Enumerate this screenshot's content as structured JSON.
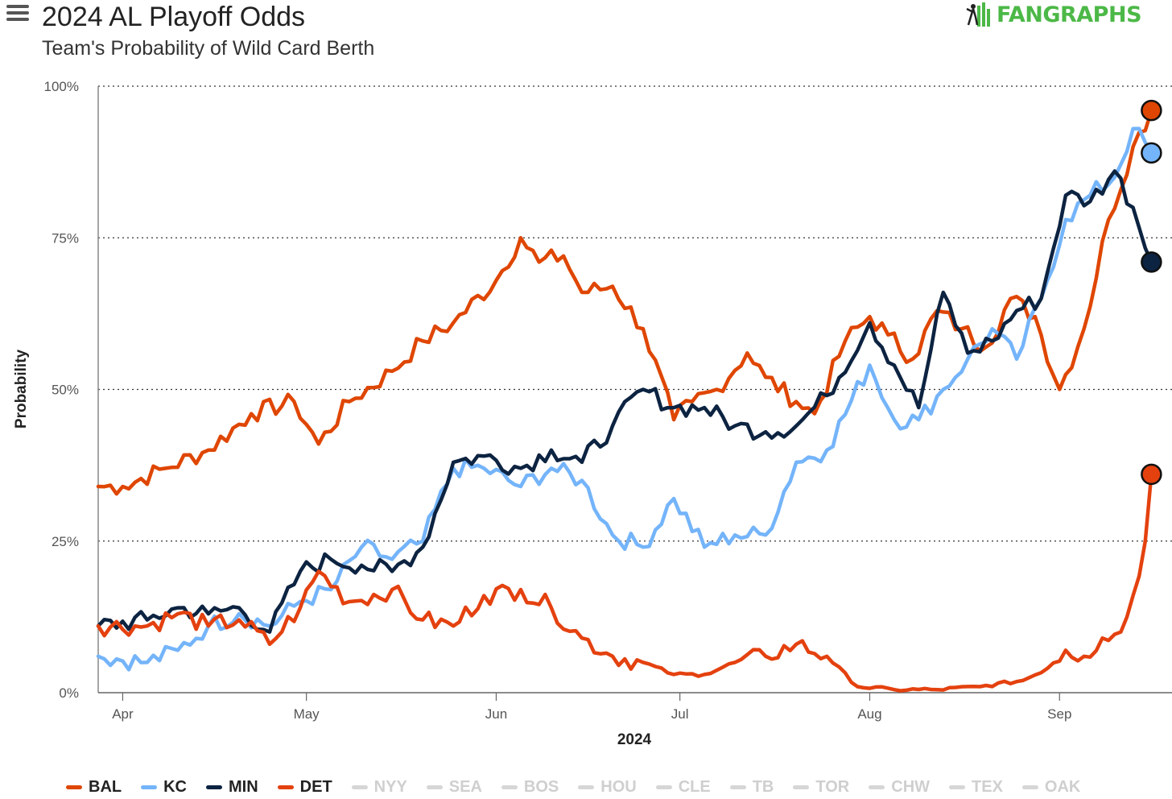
{
  "header": {
    "title": "2024 AL Playoff Odds",
    "subtitle": "Team's Probability of Wild Card Berth",
    "logo": "FANGRAPHS"
  },
  "colors": {
    "BAL": "#df4601",
    "KC": "#74b4fa",
    "MIN": "#0c2341",
    "DET": "#e4410f",
    "inactive": "#d6d6d6"
  },
  "chart_data": {
    "type": "line",
    "title": "2024 AL Playoff Odds",
    "subtitle": "Team's Probability of Wild Card Berth",
    "xlabel": "2024",
    "ylabel": "Probability",
    "ylim": [
      0,
      100
    ],
    "y_ticks": [
      "0%",
      "25%",
      "50%",
      "75%",
      "100%"
    ],
    "x_ticks": [
      "Apr",
      "May",
      "Jun",
      "Jul",
      "Aug",
      "Sep"
    ],
    "xlim": [
      "2024-03-28",
      "2024-09-17"
    ],
    "grid": "horizontal dotted",
    "legend_position": "bottom",
    "series": [
      {
        "name": "BAL",
        "color": "#df4601",
        "points": [
          [
            "2024-03-28",
            34
          ],
          [
            "2024-04-01",
            34
          ],
          [
            "2024-04-08",
            37
          ],
          [
            "2024-04-15",
            40
          ],
          [
            "2024-04-22",
            46
          ],
          [
            "2024-04-29",
            48
          ],
          [
            "2024-05-03",
            41
          ],
          [
            "2024-05-08",
            48
          ],
          [
            "2024-05-15",
            53
          ],
          [
            "2024-05-20",
            58
          ],
          [
            "2024-05-25",
            61
          ],
          [
            "2024-06-01",
            68
          ],
          [
            "2024-06-05",
            75
          ],
          [
            "2024-06-08",
            71
          ],
          [
            "2024-06-12",
            72
          ],
          [
            "2024-06-15",
            66
          ],
          [
            "2024-06-20",
            67
          ],
          [
            "2024-06-25",
            60
          ],
          [
            "2024-06-30",
            45
          ],
          [
            "2024-07-03",
            48
          ],
          [
            "2024-07-07",
            50
          ],
          [
            "2024-07-12",
            56
          ],
          [
            "2024-07-15",
            52
          ],
          [
            "2024-07-20",
            48
          ],
          [
            "2024-07-23",
            46
          ],
          [
            "2024-07-28",
            58
          ],
          [
            "2024-08-01",
            62
          ],
          [
            "2024-08-04",
            59
          ],
          [
            "2024-08-08",
            55
          ],
          [
            "2024-08-12",
            63
          ],
          [
            "2024-08-16",
            60
          ],
          [
            "2024-08-20",
            57
          ],
          [
            "2024-08-24",
            65
          ],
          [
            "2024-08-28",
            62
          ],
          [
            "2024-09-01",
            50
          ],
          [
            "2024-09-05",
            60
          ],
          [
            "2024-09-09",
            78
          ],
          [
            "2024-09-13",
            90
          ],
          [
            "2024-09-16",
            96
          ]
        ]
      },
      {
        "name": "KC",
        "color": "#74b4fa",
        "points": [
          [
            "2024-03-28",
            6
          ],
          [
            "2024-04-05",
            5
          ],
          [
            "2024-04-10",
            7
          ],
          [
            "2024-04-15",
            11
          ],
          [
            "2024-04-20",
            13
          ],
          [
            "2024-04-25",
            11
          ],
          [
            "2024-04-30",
            15
          ],
          [
            "2024-05-05",
            17
          ],
          [
            "2024-05-10",
            24
          ],
          [
            "2024-05-15",
            22
          ],
          [
            "2024-05-20",
            25
          ],
          [
            "2024-05-25",
            37
          ],
          [
            "2024-05-30",
            37
          ],
          [
            "2024-06-05",
            34
          ],
          [
            "2024-06-10",
            37
          ],
          [
            "2024-06-15",
            35
          ],
          [
            "2024-06-20",
            26
          ],
          [
            "2024-06-25",
            24
          ],
          [
            "2024-06-30",
            32
          ],
          [
            "2024-07-05",
            24
          ],
          [
            "2024-07-10",
            26
          ],
          [
            "2024-07-15",
            26
          ],
          [
            "2024-07-20",
            38
          ],
          [
            "2024-07-25",
            40
          ],
          [
            "2024-08-01",
            54
          ],
          [
            "2024-08-05",
            45
          ],
          [
            "2024-08-09",
            45
          ],
          [
            "2024-08-13",
            50
          ],
          [
            "2024-08-17",
            55
          ],
          [
            "2024-08-21",
            60
          ],
          [
            "2024-08-25",
            55
          ],
          [
            "2024-08-29",
            65
          ],
          [
            "2024-09-02",
            78
          ],
          [
            "2024-09-06",
            82
          ],
          [
            "2024-09-10",
            85
          ],
          [
            "2024-09-13",
            93
          ],
          [
            "2024-09-16",
            89
          ]
        ]
      },
      {
        "name": "MIN",
        "color": "#0c2341",
        "points": [
          [
            "2024-03-28",
            11
          ],
          [
            "2024-04-05",
            12
          ],
          [
            "2024-04-10",
            14
          ],
          [
            "2024-04-15",
            13
          ],
          [
            "2024-04-20",
            14
          ],
          [
            "2024-04-25",
            10
          ],
          [
            "2024-04-30",
            20
          ],
          [
            "2024-05-05",
            22
          ],
          [
            "2024-05-10",
            21
          ],
          [
            "2024-05-15",
            20
          ],
          [
            "2024-05-20",
            24
          ],
          [
            "2024-05-25",
            38
          ],
          [
            "2024-05-30",
            39
          ],
          [
            "2024-06-05",
            37
          ],
          [
            "2024-06-10",
            40
          ],
          [
            "2024-06-15",
            38
          ],
          [
            "2024-06-20",
            44
          ],
          [
            "2024-06-25",
            50
          ],
          [
            "2024-06-30",
            47
          ],
          [
            "2024-07-05",
            47
          ],
          [
            "2024-07-10",
            44
          ],
          [
            "2024-07-15",
            43
          ],
          [
            "2024-07-20",
            44
          ],
          [
            "2024-07-25",
            49
          ],
          [
            "2024-08-01",
            61
          ],
          [
            "2024-08-05",
            54
          ],
          [
            "2024-08-09",
            47
          ],
          [
            "2024-08-13",
            66
          ],
          [
            "2024-08-17",
            56
          ],
          [
            "2024-08-21",
            58
          ],
          [
            "2024-08-25",
            63
          ],
          [
            "2024-08-29",
            65
          ],
          [
            "2024-09-02",
            82
          ],
          [
            "2024-09-06",
            81
          ],
          [
            "2024-09-10",
            86
          ],
          [
            "2024-09-13",
            80
          ],
          [
            "2024-09-16",
            71
          ]
        ]
      },
      {
        "name": "DET",
        "color": "#e4410f",
        "points": [
          [
            "2024-03-28",
            11
          ],
          [
            "2024-04-05",
            11
          ],
          [
            "2024-04-10",
            13
          ],
          [
            "2024-04-15",
            11
          ],
          [
            "2024-04-20",
            12
          ],
          [
            "2024-04-25",
            8
          ],
          [
            "2024-04-30",
            14
          ],
          [
            "2024-05-03",
            20
          ],
          [
            "2024-05-08",
            15
          ],
          [
            "2024-05-15",
            17
          ],
          [
            "2024-05-20",
            12
          ],
          [
            "2024-05-25",
            11
          ],
          [
            "2024-05-30",
            16
          ],
          [
            "2024-06-05",
            17
          ],
          [
            "2024-06-10",
            14
          ],
          [
            "2024-06-15",
            9
          ],
          [
            "2024-06-20",
            6
          ],
          [
            "2024-06-25",
            5
          ],
          [
            "2024-06-30",
            3
          ],
          [
            "2024-07-05",
            3
          ],
          [
            "2024-07-10",
            5
          ],
          [
            "2024-07-15",
            6
          ],
          [
            "2024-07-20",
            8
          ],
          [
            "2024-07-25",
            6
          ],
          [
            "2024-07-30",
            1
          ],
          [
            "2024-08-05",
            0.5
          ],
          [
            "2024-08-12",
            0.5
          ],
          [
            "2024-08-19",
            1
          ],
          [
            "2024-08-26",
            2
          ],
          [
            "2024-08-30",
            4
          ],
          [
            "2024-09-02",
            7
          ],
          [
            "2024-09-05",
            6
          ],
          [
            "2024-09-08",
            9
          ],
          [
            "2024-09-11",
            10
          ],
          [
            "2024-09-13",
            16
          ],
          [
            "2024-09-15",
            25
          ],
          [
            "2024-09-16",
            36
          ]
        ]
      }
    ]
  },
  "legend": [
    {
      "label": "BAL",
      "active": true
    },
    {
      "label": "KC",
      "active": true
    },
    {
      "label": "MIN",
      "active": true
    },
    {
      "label": "DET",
      "active": true
    },
    {
      "label": "NYY",
      "active": false
    },
    {
      "label": "SEA",
      "active": false
    },
    {
      "label": "BOS",
      "active": false
    },
    {
      "label": "HOU",
      "active": false
    },
    {
      "label": "CLE",
      "active": false
    },
    {
      "label": "TB",
      "active": false
    },
    {
      "label": "TOR",
      "active": false
    },
    {
      "label": "CHW",
      "active": false
    },
    {
      "label": "TEX",
      "active": false
    },
    {
      "label": "OAK",
      "active": false
    }
  ]
}
